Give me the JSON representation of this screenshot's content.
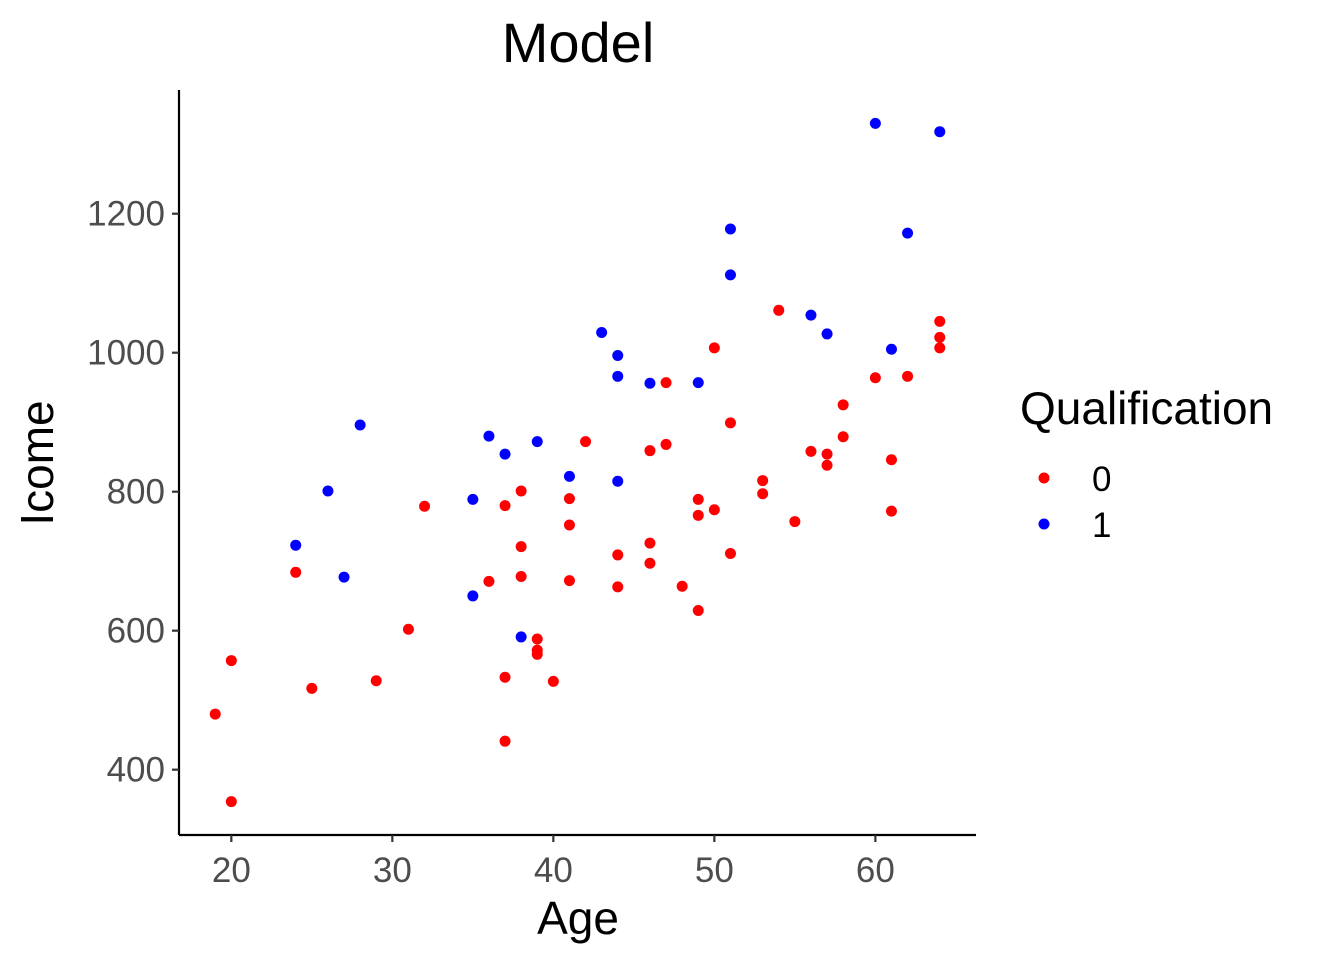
{
  "chart_data": {
    "type": "scatter",
    "title": "Model",
    "xlabel": "Age",
    "ylabel": "Icome",
    "xlim": [
      16.75,
      66.25
    ],
    "ylim": [
      306,
      1378
    ],
    "x_ticks": [
      20,
      30,
      40,
      50,
      60
    ],
    "y_ticks": [
      400,
      600,
      800,
      1000,
      1200
    ],
    "grid": false,
    "legend": {
      "title": "Qualification",
      "placement": "right",
      "entries": [
        {
          "label": "0",
          "color": "#ff0000"
        },
        {
          "label": "1",
          "color": "#0000ff"
        }
      ]
    },
    "series": [
      {
        "name": "0",
        "color": "#ff0000",
        "points": [
          [
            19,
            480
          ],
          [
            20,
            557
          ],
          [
            20,
            354
          ],
          [
            24,
            684
          ],
          [
            25,
            517
          ],
          [
            29,
            528
          ],
          [
            31,
            602
          ],
          [
            32,
            779
          ],
          [
            36,
            671
          ],
          [
            37,
            780
          ],
          [
            37,
            533
          ],
          [
            37,
            441
          ],
          [
            38,
            801
          ],
          [
            38,
            721
          ],
          [
            38,
            678
          ],
          [
            39,
            588
          ],
          [
            39,
            572
          ],
          [
            39,
            566
          ],
          [
            40,
            527
          ],
          [
            41,
            790
          ],
          [
            41,
            752
          ],
          [
            41,
            672
          ],
          [
            42,
            872
          ],
          [
            44,
            709
          ],
          [
            44,
            663
          ],
          [
            46,
            859
          ],
          [
            46,
            726
          ],
          [
            46,
            697
          ],
          [
            47,
            957
          ],
          [
            47,
            868
          ],
          [
            48,
            664
          ],
          [
            49,
            789
          ],
          [
            49,
            766
          ],
          [
            49,
            629
          ],
          [
            50,
            1007
          ],
          [
            50,
            774
          ],
          [
            51,
            899
          ],
          [
            51,
            711
          ],
          [
            53,
            816
          ],
          [
            53,
            797
          ],
          [
            54,
            1061
          ],
          [
            55,
            757
          ],
          [
            56,
            858
          ],
          [
            57,
            854
          ],
          [
            57,
            838
          ],
          [
            58,
            925
          ],
          [
            58,
            879
          ],
          [
            60,
            964
          ],
          [
            61,
            846
          ],
          [
            61,
            772
          ],
          [
            62,
            966
          ],
          [
            64,
            1045
          ],
          [
            64,
            1022
          ],
          [
            64,
            1007
          ]
        ]
      },
      {
        "name": "1",
        "color": "#0000ff",
        "points": [
          [
            24,
            723
          ],
          [
            26,
            801
          ],
          [
            27,
            677
          ],
          [
            28,
            896
          ],
          [
            35,
            789
          ],
          [
            35,
            650
          ],
          [
            36,
            880
          ],
          [
            37,
            854
          ],
          [
            38,
            591
          ],
          [
            39,
            872
          ],
          [
            41,
            822
          ],
          [
            43,
            1029
          ],
          [
            44,
            996
          ],
          [
            44,
            966
          ],
          [
            44,
            815
          ],
          [
            46,
            956
          ],
          [
            49,
            957
          ],
          [
            51,
            1178
          ],
          [
            51,
            1112
          ],
          [
            56,
            1054
          ],
          [
            57,
            1027
          ],
          [
            60,
            1330
          ],
          [
            61,
            1005
          ],
          [
            62,
            1172
          ],
          [
            64,
            1318
          ]
        ]
      }
    ]
  }
}
